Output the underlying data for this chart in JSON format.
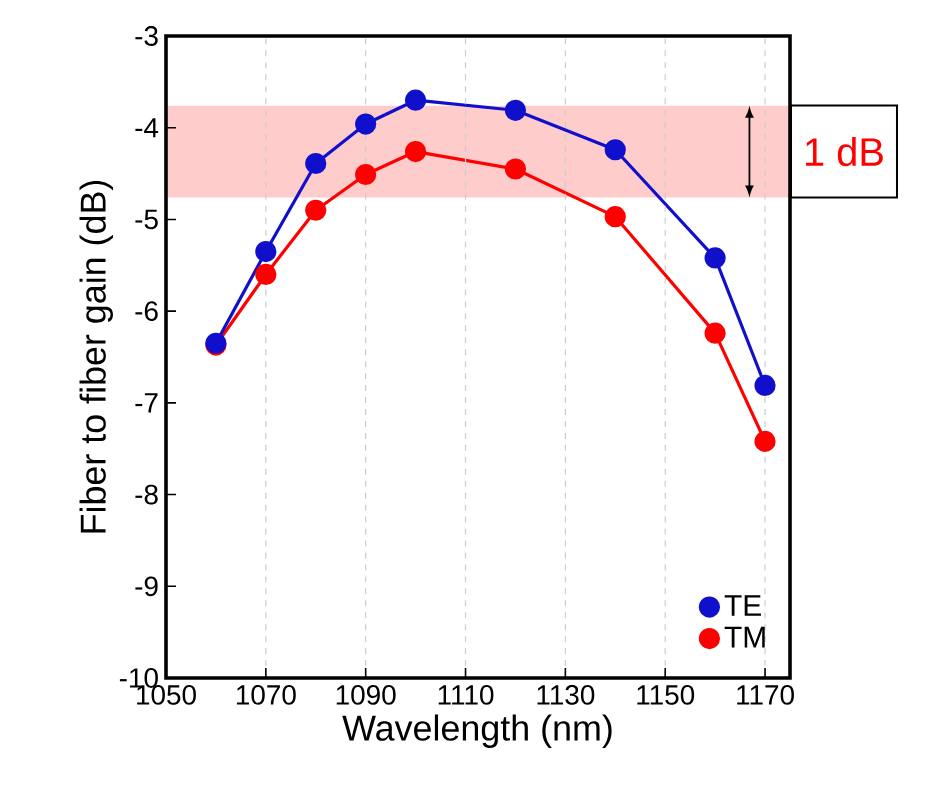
{
  "chart_data": {
    "type": "line",
    "xlabel": "Wavelength (nm)",
    "ylabel": "Fiber to fiber gain (dB)",
    "x": [
      1060,
      1070,
      1080,
      1090,
      1100,
      1120,
      1140,
      1160,
      1170
    ],
    "series": [
      {
        "name": "TE",
        "color": "#1010cc",
        "values": [
          -6.35,
          -5.35,
          -4.39,
          -3.96,
          -3.7,
          -3.81,
          -4.24,
          -5.42,
          -6.81
        ]
      },
      {
        "name": "TM",
        "color": "#ff0000",
        "values": [
          -6.37,
          -5.6,
          -4.9,
          -4.51,
          -4.26,
          -4.45,
          -4.97,
          -6.24,
          -7.42
        ]
      }
    ],
    "bands": [
      {
        "axis": "y",
        "from": -4.76,
        "to": -3.76,
        "label": "1 dB",
        "color": "#ffcccc"
      }
    ],
    "xlim": [
      1050,
      1175
    ],
    "ylim": [
      -10,
      -3
    ],
    "xticks": [
      1050,
      1070,
      1090,
      1110,
      1130,
      1150,
      1170
    ],
    "yticks": [
      -10,
      -9,
      -8,
      -7,
      -6,
      -5,
      -4,
      -3
    ],
    "grid": "x",
    "legend": "bottom right",
    "marker": "circle",
    "line_style": "solid"
  }
}
